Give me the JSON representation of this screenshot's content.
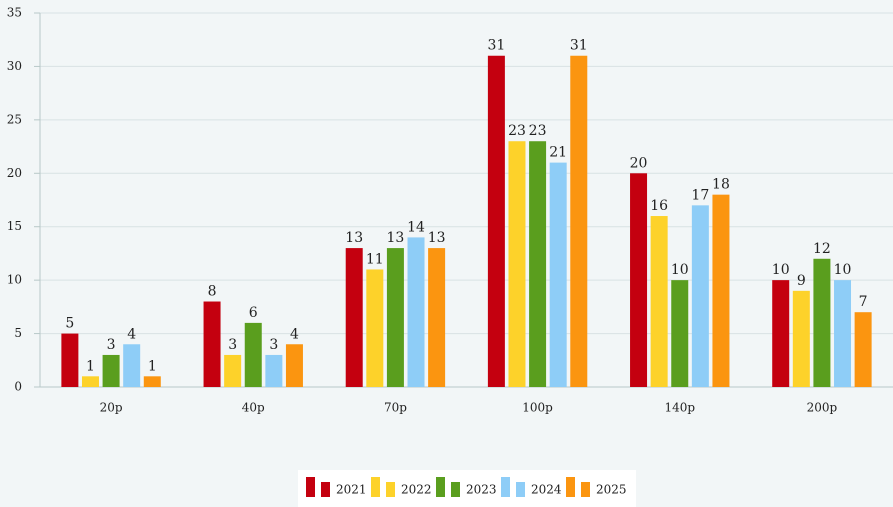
{
  "chart_data": {
    "type": "bar",
    "categories": [
      "20p",
      "40p",
      "70p",
      "100p",
      "140p",
      "200p"
    ],
    "series": [
      {
        "name": "2021",
        "color": "#c4000f",
        "values": [
          5,
          8,
          13,
          31,
          20,
          10
        ]
      },
      {
        "name": "2022",
        "color": "#fdd22a",
        "values": [
          1,
          3,
          11,
          23,
          16,
          9
        ]
      },
      {
        "name": "2023",
        "color": "#5a9e1e",
        "values": [
          3,
          6,
          13,
          23,
          10,
          12
        ]
      },
      {
        "name": "2024",
        "color": "#8ecdf7",
        "values": [
          4,
          3,
          14,
          21,
          17,
          10
        ]
      },
      {
        "name": "2025",
        "color": "#fb9510",
        "values": [
          1,
          4,
          13,
          31,
          18,
          7
        ]
      }
    ],
    "ylim": [
      0,
      35
    ],
    "yticks": [
      0,
      5,
      10,
      15,
      20,
      25,
      30,
      35
    ],
    "grid": true,
    "legend": "bottom"
  }
}
